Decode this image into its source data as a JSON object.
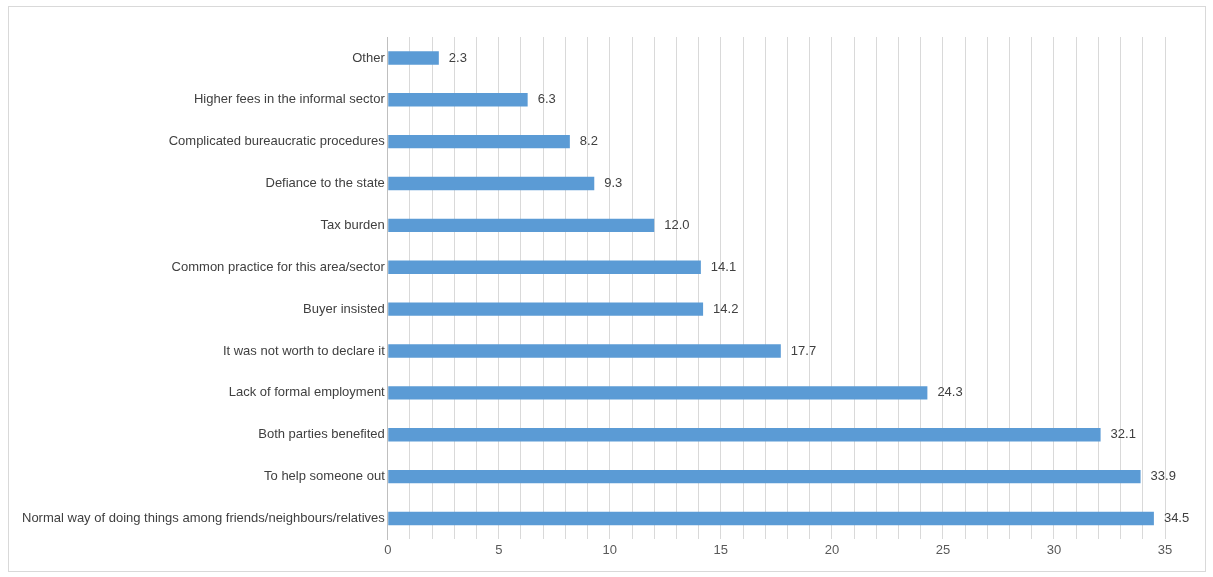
{
  "chart_data": {
    "type": "bar",
    "orientation": "horizontal",
    "categories": [
      "Other",
      "Higher fees in the informal sector",
      "Complicated bureaucratic procedures",
      "Defiance to the state",
      "Tax burden",
      "Common practice for this area/sector",
      "Buyer insisted",
      "It was not worth to declare it",
      "Lack of formal employment",
      "Both parties benefited",
      "To help someone out",
      "Normal way of doing things among friends/neighbours/relatives"
    ],
    "values": [
      2.3,
      6.3,
      8.2,
      9.3,
      12.0,
      14.1,
      14.2,
      17.7,
      24.3,
      32.1,
      33.9,
      34.5
    ],
    "value_labels": [
      "2.3",
      "6.3",
      "8.2",
      "9.3",
      "12.0",
      "14.1",
      "14.2",
      "17.7",
      "24.3",
      "32.1",
      "33.9",
      "34.5"
    ],
    "color": "#5b9bd5",
    "xlim": [
      0,
      35
    ],
    "xticks": [
      0,
      {
        "value": 1,
        "label": null
      },
      {
        "value": 2,
        "label": null
      },
      {
        "value": 3,
        "label": null
      },
      {
        "value": 4,
        "label": null
      },
      5,
      {
        "value": 6,
        "label": null
      },
      {
        "value": 7,
        "label": null
      },
      {
        "value": 8,
        "label": null
      },
      {
        "value": 9,
        "label": null
      },
      10,
      {
        "value": 11,
        "label": null
      },
      {
        "value": 12,
        "label": null
      },
      {
        "value": 13,
        "label": null
      },
      {
        "value": 14,
        "label": null
      },
      15,
      {
        "value": 16,
        "label": null
      },
      {
        "value": 17,
        "label": null
      },
      {
        "value": 18,
        "label": null
      },
      {
        "value": 19,
        "label": null
      },
      20,
      {
        "value": 21,
        "label": null
      },
      {
        "value": 22,
        "label": null
      },
      {
        "value": 23,
        "label": null
      },
      {
        "value": 24,
        "label": null
      },
      25,
      {
        "value": 26,
        "label": null
      },
      {
        "value": 27,
        "label": null
      },
      {
        "value": 28,
        "label": null
      },
      {
        "value": 29,
        "label": null
      },
      30,
      {
        "value": 31,
        "label": null
      },
      {
        "value": 32,
        "label": null
      },
      {
        "value": 33,
        "label": null
      },
      {
        "value": 34,
        "label": null
      },
      35
    ],
    "grid": "x"
  }
}
